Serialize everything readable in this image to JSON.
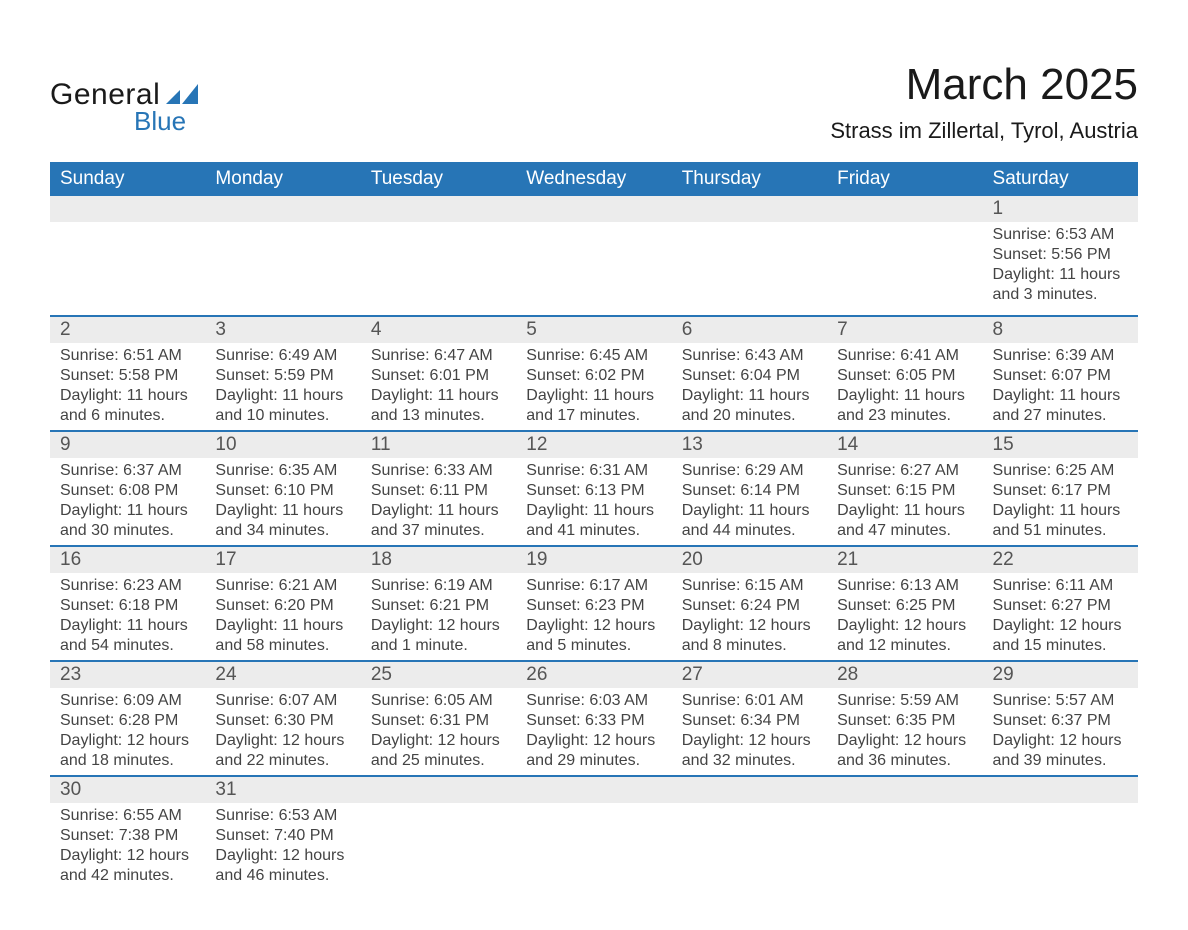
{
  "logo": {
    "word1": "General",
    "word2": "Blue",
    "shape_color": "#2775b6",
    "word1_color": "#1a1a1a",
    "word2_color": "#2775b6"
  },
  "title": {
    "month": "March 2025",
    "location": "Strass im Zillertal, Tyrol, Austria"
  },
  "colors": {
    "header_bg": "#2775b6",
    "header_text": "#ffffff",
    "daynum_bg": "#ececec",
    "text": "#444444",
    "row_divider": "#2775b6",
    "page_bg": "#ffffff"
  },
  "fonts": {
    "family": "Arial",
    "month_title_size": 44,
    "location_size": 22,
    "weekday_size": 19,
    "daynum_size": 19,
    "detail_size": 16
  },
  "weekdays": [
    "Sunday",
    "Monday",
    "Tuesday",
    "Wednesday",
    "Thursday",
    "Friday",
    "Saturday"
  ],
  "weeks": [
    [
      null,
      null,
      null,
      null,
      null,
      null,
      {
        "d": "1",
        "sr": "Sunrise: 6:53 AM",
        "ss": "Sunset: 5:56 PM",
        "dl": "Daylight: 11 hours and 3 minutes."
      }
    ],
    [
      {
        "d": "2",
        "sr": "Sunrise: 6:51 AM",
        "ss": "Sunset: 5:58 PM",
        "dl": "Daylight: 11 hours and 6 minutes."
      },
      {
        "d": "3",
        "sr": "Sunrise: 6:49 AM",
        "ss": "Sunset: 5:59 PM",
        "dl": "Daylight: 11 hours and 10 minutes."
      },
      {
        "d": "4",
        "sr": "Sunrise: 6:47 AM",
        "ss": "Sunset: 6:01 PM",
        "dl": "Daylight: 11 hours and 13 minutes."
      },
      {
        "d": "5",
        "sr": "Sunrise: 6:45 AM",
        "ss": "Sunset: 6:02 PM",
        "dl": "Daylight: 11 hours and 17 minutes."
      },
      {
        "d": "6",
        "sr": "Sunrise: 6:43 AM",
        "ss": "Sunset: 6:04 PM",
        "dl": "Daylight: 11 hours and 20 minutes."
      },
      {
        "d": "7",
        "sr": "Sunrise: 6:41 AM",
        "ss": "Sunset: 6:05 PM",
        "dl": "Daylight: 11 hours and 23 minutes."
      },
      {
        "d": "8",
        "sr": "Sunrise: 6:39 AM",
        "ss": "Sunset: 6:07 PM",
        "dl": "Daylight: 11 hours and 27 minutes."
      }
    ],
    [
      {
        "d": "9",
        "sr": "Sunrise: 6:37 AM",
        "ss": "Sunset: 6:08 PM",
        "dl": "Daylight: 11 hours and 30 minutes."
      },
      {
        "d": "10",
        "sr": "Sunrise: 6:35 AM",
        "ss": "Sunset: 6:10 PM",
        "dl": "Daylight: 11 hours and 34 minutes."
      },
      {
        "d": "11",
        "sr": "Sunrise: 6:33 AM",
        "ss": "Sunset: 6:11 PM",
        "dl": "Daylight: 11 hours and 37 minutes."
      },
      {
        "d": "12",
        "sr": "Sunrise: 6:31 AM",
        "ss": "Sunset: 6:13 PM",
        "dl": "Daylight: 11 hours and 41 minutes."
      },
      {
        "d": "13",
        "sr": "Sunrise: 6:29 AM",
        "ss": "Sunset: 6:14 PM",
        "dl": "Daylight: 11 hours and 44 minutes."
      },
      {
        "d": "14",
        "sr": "Sunrise: 6:27 AM",
        "ss": "Sunset: 6:15 PM",
        "dl": "Daylight: 11 hours and 47 minutes."
      },
      {
        "d": "15",
        "sr": "Sunrise: 6:25 AM",
        "ss": "Sunset: 6:17 PM",
        "dl": "Daylight: 11 hours and 51 minutes."
      }
    ],
    [
      {
        "d": "16",
        "sr": "Sunrise: 6:23 AM",
        "ss": "Sunset: 6:18 PM",
        "dl": "Daylight: 11 hours and 54 minutes."
      },
      {
        "d": "17",
        "sr": "Sunrise: 6:21 AM",
        "ss": "Sunset: 6:20 PM",
        "dl": "Daylight: 11 hours and 58 minutes."
      },
      {
        "d": "18",
        "sr": "Sunrise: 6:19 AM",
        "ss": "Sunset: 6:21 PM",
        "dl": "Daylight: 12 hours and 1 minute."
      },
      {
        "d": "19",
        "sr": "Sunrise: 6:17 AM",
        "ss": "Sunset: 6:23 PM",
        "dl": "Daylight: 12 hours and 5 minutes."
      },
      {
        "d": "20",
        "sr": "Sunrise: 6:15 AM",
        "ss": "Sunset: 6:24 PM",
        "dl": "Daylight: 12 hours and 8 minutes."
      },
      {
        "d": "21",
        "sr": "Sunrise: 6:13 AM",
        "ss": "Sunset: 6:25 PM",
        "dl": "Daylight: 12 hours and 12 minutes."
      },
      {
        "d": "22",
        "sr": "Sunrise: 6:11 AM",
        "ss": "Sunset: 6:27 PM",
        "dl": "Daylight: 12 hours and 15 minutes."
      }
    ],
    [
      {
        "d": "23",
        "sr": "Sunrise: 6:09 AM",
        "ss": "Sunset: 6:28 PM",
        "dl": "Daylight: 12 hours and 18 minutes."
      },
      {
        "d": "24",
        "sr": "Sunrise: 6:07 AM",
        "ss": "Sunset: 6:30 PM",
        "dl": "Daylight: 12 hours and 22 minutes."
      },
      {
        "d": "25",
        "sr": "Sunrise: 6:05 AM",
        "ss": "Sunset: 6:31 PM",
        "dl": "Daylight: 12 hours and 25 minutes."
      },
      {
        "d": "26",
        "sr": "Sunrise: 6:03 AM",
        "ss": "Sunset: 6:33 PM",
        "dl": "Daylight: 12 hours and 29 minutes."
      },
      {
        "d": "27",
        "sr": "Sunrise: 6:01 AM",
        "ss": "Sunset: 6:34 PM",
        "dl": "Daylight: 12 hours and 32 minutes."
      },
      {
        "d": "28",
        "sr": "Sunrise: 5:59 AM",
        "ss": "Sunset: 6:35 PM",
        "dl": "Daylight: 12 hours and 36 minutes."
      },
      {
        "d": "29",
        "sr": "Sunrise: 5:57 AM",
        "ss": "Sunset: 6:37 PM",
        "dl": "Daylight: 12 hours and 39 minutes."
      }
    ],
    [
      {
        "d": "30",
        "sr": "Sunrise: 6:55 AM",
        "ss": "Sunset: 7:38 PM",
        "dl": "Daylight: 12 hours and 42 minutes."
      },
      {
        "d": "31",
        "sr": "Sunrise: 6:53 AM",
        "ss": "Sunset: 7:40 PM",
        "dl": "Daylight: 12 hours and 46 minutes."
      },
      null,
      null,
      null,
      null,
      null
    ]
  ]
}
